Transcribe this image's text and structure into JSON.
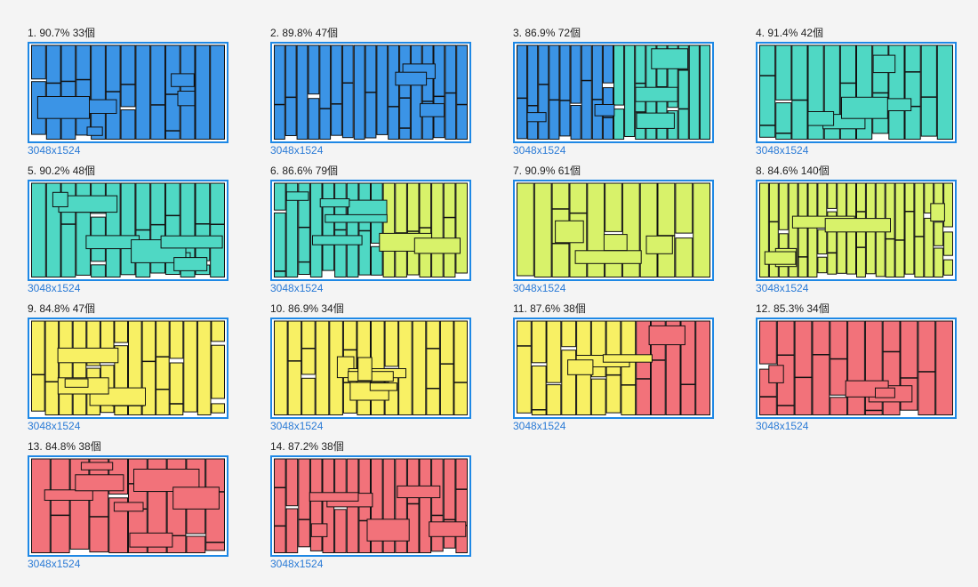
{
  "colors": {
    "blue": "#3b94e6",
    "teal": "#4fd8c4",
    "lime": "#d8f26a",
    "yellow": "#f8f064",
    "red": "#f2727a",
    "sheet_border": "#1e88e5"
  },
  "layouts": [
    {
      "title": "1. 90.7% 33個",
      "dims": "3048x1524",
      "color": "blue",
      "seed": 11,
      "cols": 13
    },
    {
      "title": "2. 89.8% 47個",
      "dims": "3048x1524",
      "color": "blue",
      "seed": 23,
      "cols": 17
    },
    {
      "title": "3. 86.9% 72個",
      "dims": "3048x1524",
      "color": "blue",
      "color2": "teal",
      "seed": 37,
      "cols": 18
    },
    {
      "title": "4. 91.4% 42個",
      "dims": "3048x1524",
      "color": "teal",
      "seed": 41,
      "cols": 12
    },
    {
      "title": "5. 90.2% 48個",
      "dims": "3048x1524",
      "color": "teal",
      "seed": 53,
      "cols": 13
    },
    {
      "title": "6. 86.6% 79個",
      "dims": "3048x1524",
      "color": "teal",
      "color2": "lime",
      "seed": 67,
      "cols": 16
    },
    {
      "title": "7. 90.9% 61個",
      "dims": "3048x1524",
      "color": "lime",
      "seed": 71,
      "cols": 11
    },
    {
      "title": "8. 84.6% 140個",
      "dims": "3048x1524",
      "color": "lime",
      "seed": 83,
      "cols": 20
    },
    {
      "title": "9. 84.8% 47個",
      "dims": "3048x1524",
      "color": "yellow",
      "seed": 97,
      "cols": 14
    },
    {
      "title": "10. 86.9% 34個",
      "dims": "3048x1524",
      "color": "yellow",
      "seed": 101,
      "cols": 14
    },
    {
      "title": "11. 87.6% 38個",
      "dims": "3048x1524",
      "color": "yellow",
      "color2": "red",
      "seed": 113,
      "cols": 13
    },
    {
      "title": "12. 85.3% 34個",
      "dims": "3048x1524",
      "color": "red",
      "seed": 127,
      "cols": 11
    },
    {
      "title": "13. 84.8% 38個",
      "dims": "3048x1524",
      "color": "red",
      "seed": 131,
      "cols": 10
    },
    {
      "title": "14. 87.2% 38個",
      "dims": "3048x1524",
      "color": "red",
      "seed": 139,
      "cols": 16
    }
  ]
}
